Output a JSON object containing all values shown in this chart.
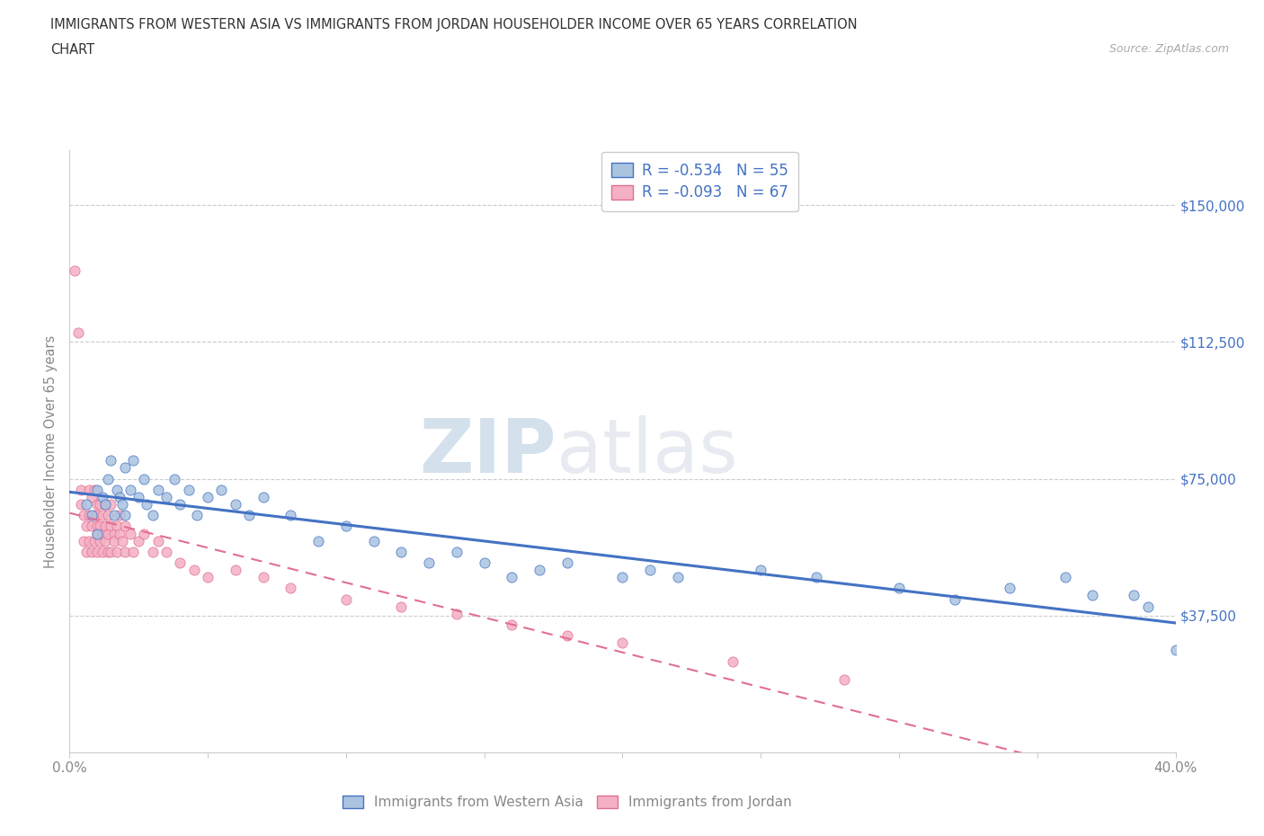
{
  "title_line1": "IMMIGRANTS FROM WESTERN ASIA VS IMMIGRANTS FROM JORDAN HOUSEHOLDER INCOME OVER 65 YEARS CORRELATION",
  "title_line2": "CHART",
  "source_text": "Source: ZipAtlas.com",
  "ylabel": "Householder Income Over 65 years",
  "legend_entry1": {
    "label": "Immigrants from Western Asia",
    "R": -0.534,
    "N": 55,
    "dot_color": "#aac4e0",
    "dot_edge": "#4472c4",
    "line_color": "#4472c4"
  },
  "legend_entry2": {
    "label": "Immigrants from Jordan",
    "R": -0.093,
    "N": 67,
    "dot_color": "#f4b0c4",
    "dot_edge": "#e07090",
    "line_color": "#e07090"
  },
  "xmin": 0.0,
  "xmax": 0.4,
  "ymin": 0,
  "ymax": 165000,
  "ytick_positions": [
    0,
    37500,
    75000,
    112500,
    150000
  ],
  "right_ytick_positions": [
    37500,
    75000,
    112500,
    150000
  ],
  "right_ytick_labels": [
    "$37,500",
    "$75,000",
    "$112,500",
    "$150,000"
  ],
  "xtick_positions": [
    0.0,
    0.05,
    0.1,
    0.15,
    0.2,
    0.25,
    0.3,
    0.35,
    0.4
  ],
  "xtick_labels": [
    "0.0%",
    "",
    "",
    "",
    "",
    "",
    "",
    "",
    "40.0%"
  ],
  "title_color": "#333333",
  "tick_color": "#888888",
  "grid_color": "#cccccc",
  "right_label_color": "#4472c4",
  "bg_color": "#ffffff",
  "scatter_w_x": [
    0.006,
    0.008,
    0.01,
    0.01,
    0.012,
    0.013,
    0.014,
    0.015,
    0.016,
    0.017,
    0.018,
    0.019,
    0.02,
    0.02,
    0.022,
    0.023,
    0.025,
    0.027,
    0.028,
    0.03,
    0.032,
    0.035,
    0.038,
    0.04,
    0.043,
    0.046,
    0.05,
    0.055,
    0.06,
    0.065,
    0.07,
    0.08,
    0.09,
    0.1,
    0.11,
    0.12,
    0.13,
    0.14,
    0.15,
    0.16,
    0.17,
    0.18,
    0.2,
    0.21,
    0.22,
    0.25,
    0.27,
    0.3,
    0.32,
    0.34,
    0.36,
    0.37,
    0.385,
    0.39,
    0.4
  ],
  "scatter_w_y": [
    68000,
    65000,
    72000,
    60000,
    70000,
    68000,
    75000,
    80000,
    65000,
    72000,
    70000,
    68000,
    78000,
    65000,
    72000,
    80000,
    70000,
    75000,
    68000,
    65000,
    72000,
    70000,
    75000,
    68000,
    72000,
    65000,
    70000,
    72000,
    68000,
    65000,
    70000,
    65000,
    58000,
    62000,
    58000,
    55000,
    52000,
    55000,
    52000,
    48000,
    50000,
    52000,
    48000,
    50000,
    48000,
    50000,
    48000,
    45000,
    42000,
    45000,
    48000,
    43000,
    43000,
    40000,
    28000
  ],
  "scatter_j_x": [
    0.002,
    0.003,
    0.004,
    0.004,
    0.005,
    0.005,
    0.006,
    0.006,
    0.007,
    0.007,
    0.007,
    0.008,
    0.008,
    0.008,
    0.009,
    0.009,
    0.009,
    0.01,
    0.01,
    0.01,
    0.01,
    0.01,
    0.011,
    0.011,
    0.011,
    0.012,
    0.012,
    0.012,
    0.013,
    0.013,
    0.013,
    0.014,
    0.014,
    0.014,
    0.015,
    0.015,
    0.015,
    0.016,
    0.016,
    0.017,
    0.017,
    0.018,
    0.018,
    0.019,
    0.02,
    0.02,
    0.022,
    0.023,
    0.025,
    0.027,
    0.03,
    0.032,
    0.035,
    0.04,
    0.045,
    0.05,
    0.06,
    0.07,
    0.08,
    0.1,
    0.12,
    0.14,
    0.16,
    0.18,
    0.2,
    0.24,
    0.28
  ],
  "scatter_j_y": [
    132000,
    115000,
    68000,
    72000,
    65000,
    58000,
    55000,
    62000,
    72000,
    65000,
    58000,
    62000,
    55000,
    70000,
    65000,
    72000,
    58000,
    62000,
    68000,
    55000,
    65000,
    60000,
    68000,
    58000,
    62000,
    65000,
    55000,
    60000,
    62000,
    68000,
    58000,
    55000,
    65000,
    60000,
    62000,
    55000,
    68000,
    60000,
    58000,
    62000,
    55000,
    65000,
    60000,
    58000,
    62000,
    55000,
    60000,
    55000,
    58000,
    60000,
    55000,
    58000,
    55000,
    52000,
    50000,
    48000,
    50000,
    48000,
    45000,
    42000,
    40000,
    38000,
    35000,
    32000,
    30000,
    25000,
    20000
  ]
}
